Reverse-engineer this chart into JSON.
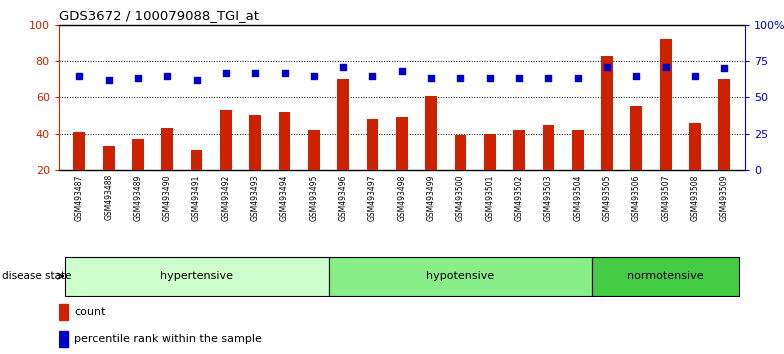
{
  "title": "GDS3672 / 100079088_TGI_at",
  "samples": [
    "GSM493487",
    "GSM493488",
    "GSM493489",
    "GSM493490",
    "GSM493491",
    "GSM493492",
    "GSM493493",
    "GSM493494",
    "GSM493495",
    "GSM493496",
    "GSM493497",
    "GSM493498",
    "GSM493499",
    "GSM493500",
    "GSM493501",
    "GSM493502",
    "GSM493503",
    "GSM493504",
    "GSM493505",
    "GSM493506",
    "GSM493507",
    "GSM493508",
    "GSM493509"
  ],
  "count_values": [
    41,
    33,
    37,
    43,
    31,
    53,
    50,
    52,
    42,
    70,
    48,
    49,
    61,
    39,
    40,
    42,
    45,
    42,
    83,
    55,
    92,
    46,
    70
  ],
  "percentile_values": [
    65,
    62,
    63,
    65,
    62,
    67,
    67,
    67,
    65,
    71,
    65,
    68,
    63,
    63,
    63,
    63,
    63,
    63,
    71,
    65,
    71,
    65,
    70
  ],
  "groups": [
    {
      "name": "hypertensive",
      "start": 0,
      "end": 9,
      "color": "#ccffcc"
    },
    {
      "name": "hypotensive",
      "start": 9,
      "end": 18,
      "color": "#88ee88"
    },
    {
      "name": "normotensive",
      "start": 18,
      "end": 23,
      "color": "#44cc44"
    }
  ],
  "bar_color": "#cc2200",
  "dot_color": "#0000cc",
  "ylim_left": [
    20,
    100
  ],
  "ylim_right": [
    0,
    100
  ],
  "yticks_left": [
    20,
    40,
    60,
    80,
    100
  ],
  "ytick_labels_right": [
    "0",
    "25",
    "50",
    "75",
    "100%"
  ],
  "grid_values": [
    40,
    60,
    80
  ],
  "bg": "#ffffff",
  "xtick_bg": "#dddddd",
  "label_count": "count",
  "label_pct": "percentile rank within the sample",
  "disease_label": "disease state"
}
